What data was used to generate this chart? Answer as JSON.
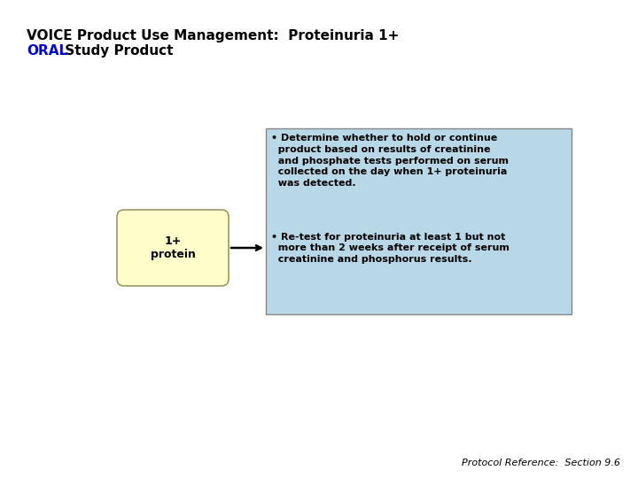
{
  "title_line1": "VOICE Product Use Management:  Proteinuria 1+",
  "title_line2_blue": "ORAL",
  "title_line2_rest": " Study Product",
  "title_fontsize": 11,
  "box_left_label": "1+\nprotein",
  "box_left_bg": "#FFFFCC",
  "box_left_border": "#999966",
  "box_right_bg": "#B8D8E8",
  "box_right_border": "#888888",
  "bullet1": "• Determine whether to hold or continue\n  product based on results of creatinine\n  and phosphate tests performed on serum\n  collected on the day when 1+ proteinuria\n  was detected.",
  "bullet2": "• Re-test for proteinuria at least 1 but not\n  more than 2 weeks after receipt of serum\n  creatinine and phosphorus results.",
  "footer": "Protocol Reference:  Section 9.6",
  "footer_fontsize": 8,
  "text_fontsize": 8,
  "label_fontsize": 9,
  "blue_color": "#0000CC",
  "background_color": "#FFFFFF"
}
